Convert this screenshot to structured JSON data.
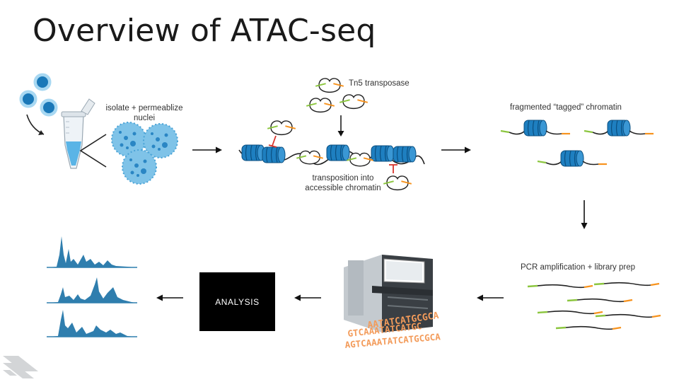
{
  "title": "Overview of ATAC-seq",
  "labels": {
    "isolate_line1": "isolate + permeablize",
    "isolate_line2": "nuclei",
    "tn5": "Tn5 transposase",
    "transposition_line1": "transposition into",
    "transposition_line2": "accessible chromatin",
    "fragmented": "fragmented “tagged” chromatin",
    "pcr": "PCR amplification + library prep",
    "analysis": "ANALYSIS"
  },
  "sequence_text": {
    "line1": "AATATCATGCGCA",
    "line2": "GTCAAATATCATGC",
    "line3": "AGTCAAATATCATGCGCA"
  },
  "colors": {
    "nucleosome": "#1e7fc0",
    "nucleosome_dark": "#0d5a92",
    "adapter_green": "#8cc63f",
    "adapter_orange": "#f7931e",
    "cell_blue": "#2a9bd6",
    "peak_blue": "#2f7eae",
    "inhibit_red": "#d9342b",
    "sequence_orange": "#f39b5a"
  }
}
